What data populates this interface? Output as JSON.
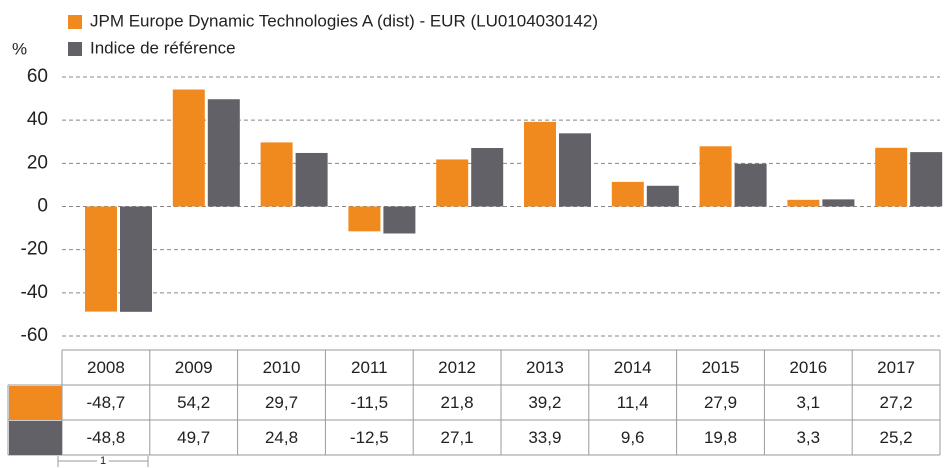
{
  "chart_data": {
    "type": "bar",
    "y_axis_label": "%",
    "categories": [
      "2008",
      "2009",
      "2010",
      "2011",
      "2012",
      "2013",
      "2014",
      "2015",
      "2016",
      "2017"
    ],
    "series": [
      {
        "name": "JPM Europe Dynamic Technologies A (dist) - EUR (LU0104030142)",
        "color": "#f08a1e",
        "values": [
          -48.7,
          54.2,
          29.7,
          -11.5,
          21.8,
          39.2,
          11.4,
          27.9,
          3.1,
          27.2
        ],
        "value_labels": [
          "-48,7",
          "54,2",
          "29,7",
          "-11,5",
          "21,8",
          "39,2",
          "11,4",
          "27,9",
          "3,1",
          "27,2"
        ]
      },
      {
        "name": "Indice de référence",
        "color": "#616167",
        "values": [
          -48.8,
          49.7,
          24.8,
          -12.5,
          27.1,
          33.9,
          9.6,
          19.8,
          3.3,
          25.2
        ],
        "value_labels": [
          "-48,8",
          "49,7",
          "24,8",
          "-12,5",
          "27,1",
          "33,9",
          "9,6",
          "19,8",
          "3,3",
          "25,2"
        ]
      }
    ],
    "ylim": [
      -60,
      60
    ],
    "yticks": [
      -60,
      -40,
      -20,
      0,
      20,
      40,
      60
    ],
    "grid": true,
    "scale_label": "1"
  }
}
